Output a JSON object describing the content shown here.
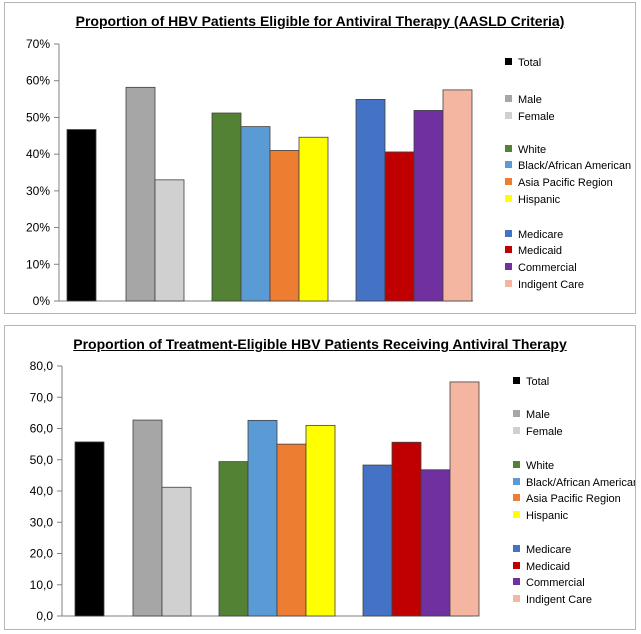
{
  "charts": [
    {
      "title": "Proportion of HBV Patients Eligible for Antiviral Therapy (AASLD Criteria)",
      "type": "bar",
      "yticks": [
        "0%",
        "10%",
        "20%",
        "30%",
        "40%",
        "50%",
        "60%",
        "70%"
      ],
      "ylim": [
        0,
        70
      ],
      "grid": false,
      "legend_position": "right",
      "groups": [
        {
          "bars": [
            {
              "name": "Total",
              "value": 46.7
            }
          ]
        },
        {
          "bars": [
            {
              "name": "Male",
              "value": 58.2
            },
            {
              "name": "Female",
              "value": 33.0
            }
          ]
        },
        {
          "bars": [
            {
              "name": "White",
              "value": 51.2
            },
            {
              "name": "Black/African American",
              "value": 47.5
            },
            {
              "name": "Asia Pacific Region",
              "value": 41.0
            },
            {
              "name": "Hispanic",
              "value": 44.6
            }
          ]
        },
        {
          "bars": [
            {
              "name": "Medicare",
              "value": 54.9
            },
            {
              "name": "Medicaid",
              "value": 40.6
            },
            {
              "name": "Commercial",
              "value": 51.9
            },
            {
              "name": "Indigent Care",
              "value": 57.5
            }
          ]
        }
      ]
    },
    {
      "title": "Proportion of Treatment-Eligible HBV Patients Receiving Antiviral Therapy",
      "type": "bar",
      "yticks": [
        "0,0",
        "10,0",
        "20,0",
        "30,0",
        "40,0",
        "50,0",
        "60,0",
        "70,0",
        "80,0"
      ],
      "ylim": [
        0,
        80
      ],
      "grid": false,
      "legend_position": "right",
      "groups": [
        {
          "bars": [
            {
              "name": "Total",
              "value": 55.7
            }
          ]
        },
        {
          "bars": [
            {
              "name": "Male",
              "value": 62.7
            },
            {
              "name": "Female",
              "value": 41.2
            }
          ]
        },
        {
          "bars": [
            {
              "name": "White",
              "value": 49.4
            },
            {
              "name": "Black/African American",
              "value": 62.6
            },
            {
              "name": "Asia Pacific Region",
              "value": 55.0
            },
            {
              "name": "Hispanic",
              "value": 61.0
            }
          ]
        },
        {
          "bars": [
            {
              "name": "Medicare",
              "value": 48.3
            },
            {
              "name": "Medicaid",
              "value": 55.6
            },
            {
              "name": "Commercial",
              "value": 46.8
            },
            {
              "name": "Indigent Care",
              "value": 74.9
            }
          ]
        }
      ]
    }
  ],
  "legend": [
    {
      "label": "Total",
      "color": "#000000"
    },
    {
      "label": "Male",
      "color": "#a6a6a6"
    },
    {
      "label": "Female",
      "color": "#d0d0d0"
    },
    {
      "label": "White",
      "color": "#548235"
    },
    {
      "label": "Black/African American",
      "color": "#5b9bd5"
    },
    {
      "label": "Asia Pacific Region",
      "color": "#ed7d31"
    },
    {
      "label": "Hispanic",
      "color": "#ffff00"
    },
    {
      "label": "Medicare",
      "color": "#4472c4"
    },
    {
      "label": "Medicaid",
      "color": "#c00000"
    },
    {
      "label": "Commercial",
      "color": "#7030a0"
    },
    {
      "label": "Indigent Care",
      "color": "#f4b6a0"
    }
  ]
}
